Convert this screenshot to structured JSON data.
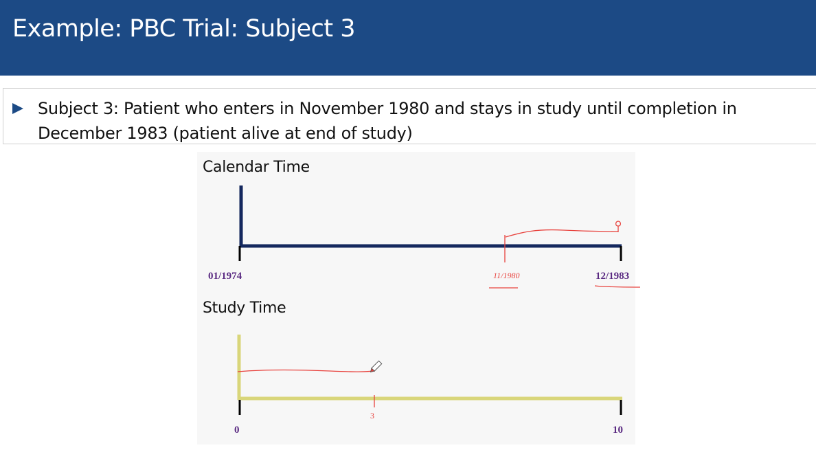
{
  "slide": {
    "title": "Example: PBC Trial: Subject 3",
    "bullet": "Subject 3: Patient who enters in November 1980 and stays in study until completion in December 1983 (patient alive at end of study)"
  },
  "calendar": {
    "label": "Calendar Time",
    "start_label": "01/1974",
    "end_label": "12/1983",
    "entry_annotation": "11/1980",
    "axis_color": "#14285e"
  },
  "study": {
    "label": "Study Time",
    "start_label": "0",
    "end_label": "10",
    "mark_annotation": "3",
    "axis_color": "#d9d67a"
  },
  "colors": {
    "header": "#1c4a85",
    "tick_label": "#5a2a82",
    "annotation_ink": "#e8423d"
  },
  "icons": {
    "bullet": "triangle-right-icon",
    "pen": "pencil-icon"
  }
}
